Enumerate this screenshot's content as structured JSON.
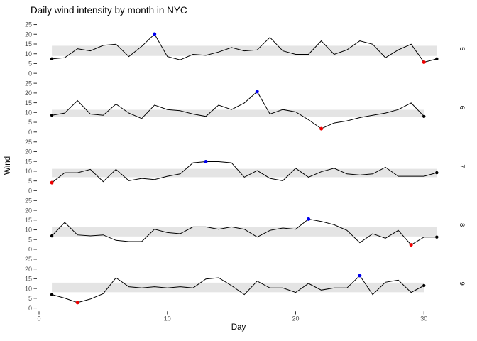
{
  "title": "Daily wind intensity by month in NYC",
  "x_axis": {
    "label": "Day",
    "ticks": [
      0,
      10,
      20,
      30
    ]
  },
  "y_axis": {
    "label": "Wind",
    "ticks": [
      0,
      5,
      10,
      15,
      20,
      25
    ]
  },
  "colors": {
    "background": "#ffffff",
    "band": "#e4e4e4",
    "line": "#000000",
    "endpoint_dot": "#000000",
    "max_dot": "#0000ee",
    "min_dot": "#ee0000",
    "axis_text": "#4d4d4d",
    "tick_mark": "#333333",
    "strip_text": "#000000"
  },
  "chart_data": {
    "type": "line",
    "title": "Daily wind intensity by month in NYC",
    "xlabel": "Day",
    "ylabel": "Wind",
    "x_range": [
      1,
      31
    ],
    "x_ticks": [
      0,
      10,
      20,
      30
    ],
    "y_ticks_per_facet": [
      0,
      5,
      10,
      15,
      20,
      25
    ],
    "ylim_per_facet": [
      0,
      25
    ],
    "grid": "off",
    "legend": "none",
    "facet_axis": "right",
    "facets": [
      {
        "month": "5",
        "values": [
          7.4,
          8.0,
          12.6,
          11.5,
          14.3,
          14.9,
          8.6,
          13.8,
          20.1,
          8.6,
          6.9,
          9.7,
          9.2,
          10.9,
          13.2,
          11.5,
          12.0,
          18.4,
          11.5,
          9.7,
          9.7,
          16.6,
          9.7,
          12.0,
          16.6,
          14.9,
          8.0,
          12.0,
          14.9,
          5.7,
          7.4
        ],
        "band": [
          8.9,
          14.1
        ],
        "max": {
          "day": 9,
          "value": 20.1
        },
        "min": {
          "day": 30,
          "value": 5.7
        }
      },
      {
        "month": "6",
        "values": [
          8.6,
          9.7,
          16.1,
          9.2,
          8.6,
          14.3,
          9.7,
          6.9,
          13.8,
          11.5,
          10.9,
          9.2,
          8.0,
          13.8,
          11.5,
          14.9,
          20.7,
          9.2,
          11.5,
          10.3,
          6.3,
          1.7,
          4.6,
          5.7,
          7.4,
          8.6,
          9.7,
          11.5,
          14.9,
          8.0
        ],
        "band": [
          7.8,
          11.4
        ],
        "max": {
          "day": 17,
          "value": 20.7
        },
        "min": {
          "day": 22,
          "value": 1.7
        }
      },
      {
        "month": "7",
        "values": [
          4.1,
          9.2,
          9.2,
          10.9,
          4.6,
          10.9,
          5.1,
          6.3,
          5.7,
          7.4,
          8.6,
          14.3,
          14.9,
          14.9,
          14.3,
          6.9,
          10.3,
          6.3,
          5.1,
          11.5,
          6.9,
          9.7,
          11.5,
          8.6,
          8.0,
          8.6,
          12.0,
          7.4,
          7.4,
          7.4,
          9.2
        ],
        "band": [
          6.9,
          11.2
        ],
        "max": {
          "day": 13,
          "value": 14.9
        },
        "min": {
          "day": 1,
          "value": 4.1
        }
      },
      {
        "month": "8",
        "values": [
          6.9,
          13.8,
          7.4,
          6.9,
          7.4,
          4.6,
          4.0,
          4.0,
          10.3,
          8.6,
          8.0,
          11.5,
          11.5,
          10.3,
          11.5,
          10.3,
          6.3,
          9.7,
          10.9,
          10.3,
          15.5,
          14.3,
          12.6,
          9.7,
          3.4,
          8.0,
          5.7,
          9.7,
          2.3,
          6.3,
          6.3
        ],
        "band": [
          6.6,
          11.3
        ],
        "max": {
          "day": 21,
          "value": 15.5
        },
        "min": {
          "day": 29,
          "value": 2.3
        }
      },
      {
        "month": "9",
        "values": [
          6.9,
          5.1,
          2.8,
          4.6,
          7.4,
          15.5,
          10.9,
          10.3,
          10.9,
          10.3,
          10.9,
          10.3,
          14.9,
          15.5,
          11.5,
          6.9,
          13.8,
          10.3,
          10.3,
          8.0,
          12.6,
          9.2,
          10.3,
          10.3,
          16.6,
          6.9,
          13.2,
          14.3,
          8.0,
          11.5
        ],
        "band": [
          8.1,
          13.0
        ],
        "max": {
          "day": 25,
          "value": 16.6
        },
        "min": {
          "day": 3,
          "value": 2.8
        }
      }
    ]
  }
}
